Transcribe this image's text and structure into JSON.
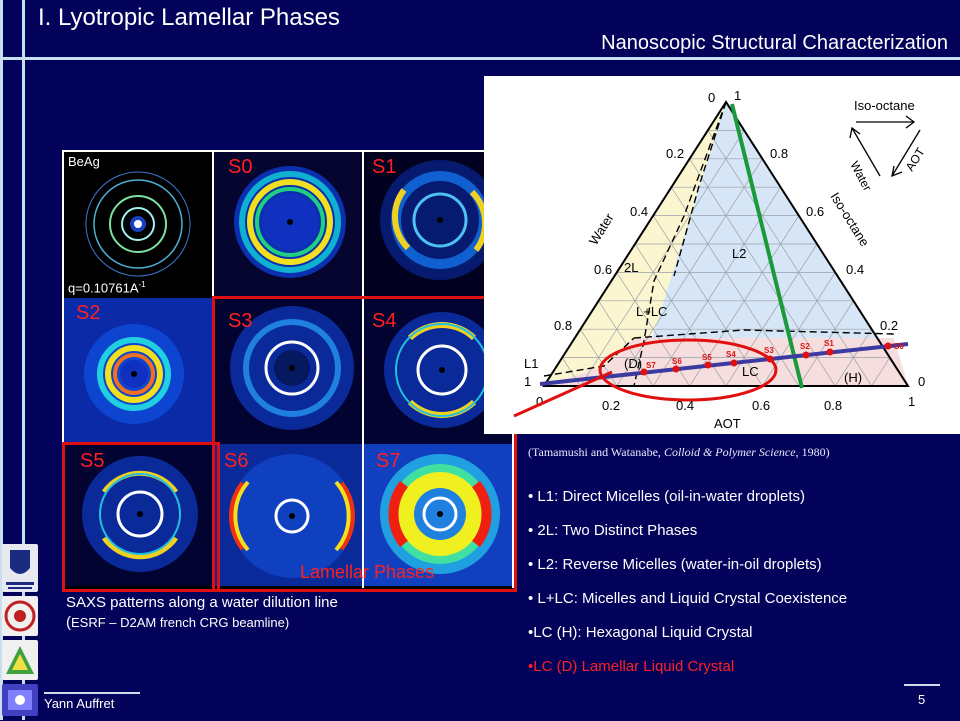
{
  "title": "I. Lyotropic Lamellar Phases",
  "subtitle": "Nanoscopic Structural Characterization",
  "tiles": {
    "beag_label": "BeAg",
    "q_value": "q=0.10761A",
    "q_sup": "-1",
    "labels": [
      "S0",
      "S1",
      "S2",
      "S3",
      "S4",
      "S5",
      "S6",
      "S7"
    ],
    "lamellar_label": "Lamellar Phases"
  },
  "caption": {
    "line1": "SAXS patterns along a water dilution line",
    "line2_paren": "(",
    "line2_rest": "ESRF – D2AM french CRG beamline)"
  },
  "diagram": {
    "top_labels": [
      "0",
      "1"
    ],
    "left_ticks": [
      "0.2",
      "0.4",
      "0.6",
      "0.8",
      "1"
    ],
    "right_ticks": [
      "0.8",
      "0.6",
      "0.4",
      "0.2",
      "0"
    ],
    "bottom_ticks": [
      "0",
      "0.2",
      "0.4",
      "0.6",
      "0.8",
      "1"
    ],
    "axis_water": "Water",
    "axis_isooctane": "Iso-octane",
    "axis_aot": "AOT",
    "legend_isooctane": "Iso-octane",
    "legend_water": "Water",
    "legend_aot": "AOT",
    "regions": [
      "2L",
      "L2",
      "L+LC",
      "L1",
      "(D)",
      "LC",
      "(H)"
    ],
    "samples": [
      "S7",
      "S6",
      "S5",
      "S4",
      "S3",
      "S2",
      "S1",
      "S0"
    ]
  },
  "citation": {
    "authors": "(Tamamushi and Watanabe, ",
    "journal": "Colloid & Polymer Science",
    "year": ", 1980)"
  },
  "legend": [
    {
      "text": "• L1: Direct Micelles (oil-in-water droplets)",
      "color": "#ffffff"
    },
    {
      "text": "• 2L: Two Distinct Phases",
      "color": "#ffffff"
    },
    {
      "text": "• L2: Reverse Micelles (water-in-oil droplets)",
      "color": "#ffffff"
    },
    {
      "text": "• L+LC: Micelles and Liquid Crystal  Coexistence",
      "color": "#ffffff"
    },
    {
      "text": "•LC (H): Hexagonal Liquid Crystal",
      "color": "#ffffff"
    },
    {
      "text": "•LC (D) Lamellar Liquid Crystal",
      "color": "#ff2020"
    }
  ],
  "footer": {
    "author": "Yann Auffret",
    "page": "5"
  }
}
